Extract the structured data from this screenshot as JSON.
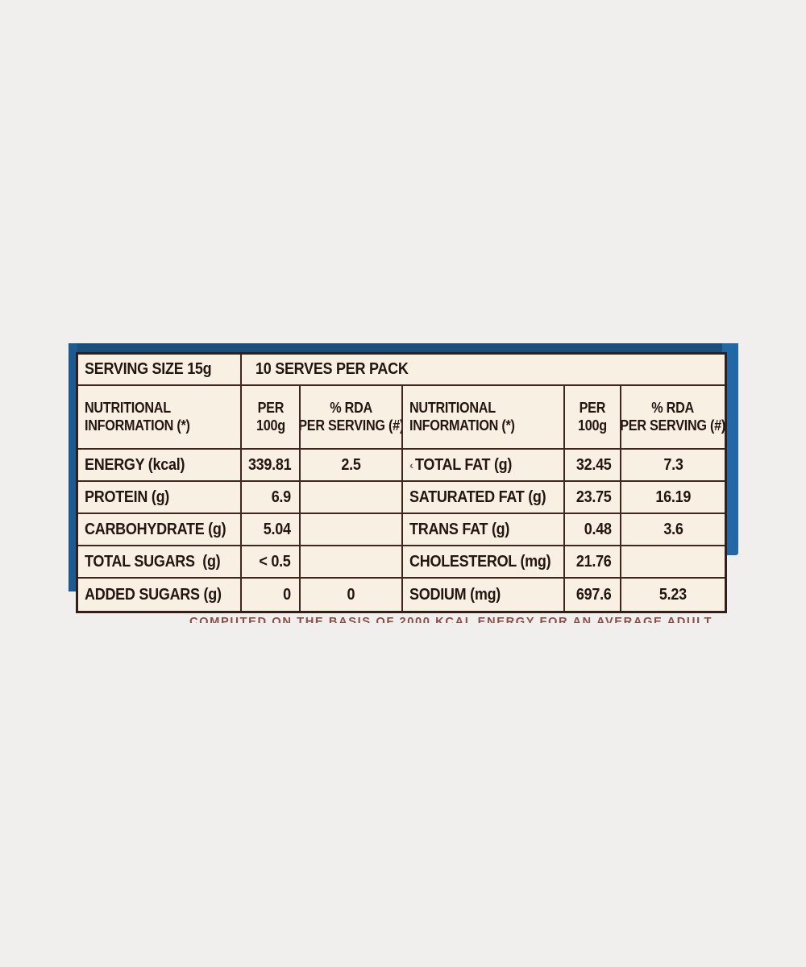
{
  "colors": {
    "page_background": "#f0efed",
    "label_paper": "#f8f1e3",
    "table_border": "#40261c",
    "package_blue": "#2268a5",
    "package_blue_dark": "#17507f",
    "text": "#241510",
    "footnote_text": "#8a4f45"
  },
  "serving": {
    "size_label": "SERVING SIZE 15g",
    "serves_label": "10 SERVES PER PACK"
  },
  "header": {
    "nutrition_l1": "NUTRITIONAL",
    "nutrition_l2": "INFORMATION (*)",
    "per_l1": "PER",
    "per_l2": "100g",
    "rda_l1": "% RDA",
    "rda_l2": "PER SERVING (#)"
  },
  "rows": [
    {
      "l_label": "ENERGY (kcal)",
      "l_val": "339.81",
      "l_rda": "2.5",
      "r_label": "TOTAL FAT (g)",
      "r_val": "32.45",
      "r_rda": "7.3"
    },
    {
      "l_label": "PROTEIN (g)",
      "l_val": "6.9",
      "l_rda": "",
      "r_label": "SATURATED FAT (g)",
      "r_val": "23.75",
      "r_rda": "16.19"
    },
    {
      "l_label": "CARBOHYDRATE (g)",
      "l_val": "5.04",
      "l_rda": "",
      "r_label": "TRANS FAT (g)",
      "r_val": "0.48",
      "r_rda": "3.6"
    },
    {
      "l_label": "TOTAL SUGARS  (g)",
      "l_val": "< 0.5",
      "l_rda": "",
      "r_label": "CHOLESTEROL (mg)",
      "r_val": "21.76",
      "r_rda": ""
    },
    {
      "l_label": "ADDED SUGARS (g)",
      "l_val": "0",
      "l_rda": "0",
      "r_label": "SODIUM (mg)",
      "r_val": "697.6",
      "r_rda": "5.23"
    }
  ],
  "footnote": "COMPUTED ON THE BASIS OF 2000 KCAL ENERGY FOR AN AVERAGE ADULT",
  "artifact_mark": "‹"
}
